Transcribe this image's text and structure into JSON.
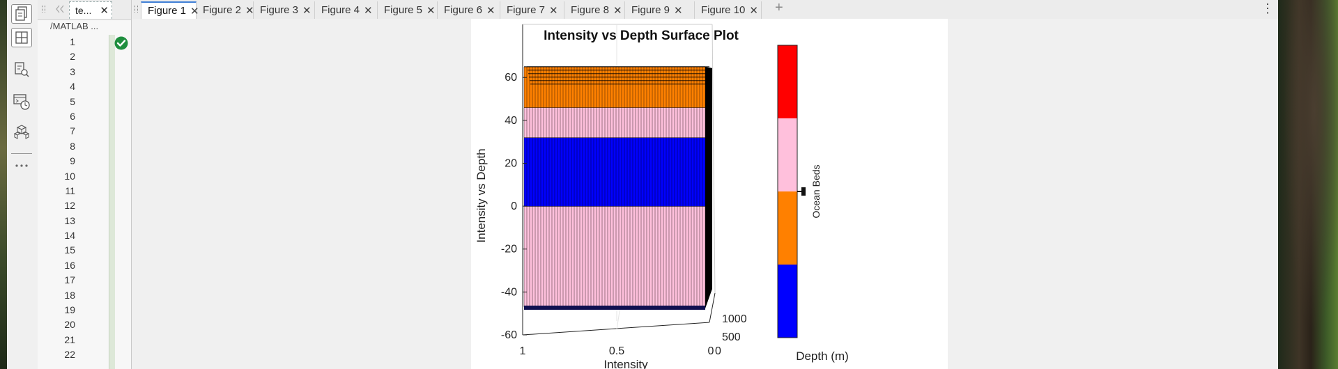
{
  "file_panel": {
    "tab_label": "te...",
    "path": "/MATLAB ...",
    "line_numbers": [
      "1",
      "2",
      "3",
      "4",
      "5",
      "6",
      "7",
      "8",
      "9",
      "10",
      "11",
      "12",
      "13",
      "14",
      "15",
      "16",
      "17",
      "18",
      "19",
      "20",
      "21",
      "22"
    ]
  },
  "figure_tabs": [
    "Figure 1",
    "Figure 2",
    "Figure 3",
    "Figure 4",
    "Figure 5",
    "Figure 6",
    "Figure 7",
    "Figure 8",
    "Figure 9",
    "Figure 10"
  ],
  "add_tab_symbol": "+",
  "more_symbol": "⋮",
  "toolstrip_icons": [
    "files-icon",
    "layout-grid-icon",
    "find-files-icon",
    "command-history-icon",
    "add-ons-icon",
    "more-icon"
  ],
  "colors": {
    "accent": "#3f7fd6",
    "ok_green": "#1e8e3e",
    "band_blue": "#0000ff",
    "band_orange": "#ff8000",
    "band_pink": "#ffc0dc",
    "band_red": "#ff0000"
  },
  "chart_data": {
    "type": "surface",
    "title": "Intensity vs Depth Surface Plot",
    "xlabel": "Intensity",
    "ylabel": "",
    "zlabel": "Intensity vs Depth",
    "x_ticks": [
      "1",
      "0.5",
      "0"
    ],
    "y_ticks": [
      "0",
      "500",
      "1000"
    ],
    "z_ticks": [
      "60",
      "40",
      "20",
      "0",
      "-20",
      "-40",
      "-60"
    ],
    "zlim": [
      -60,
      75
    ],
    "surface_bands": [
      {
        "from": -47,
        "to": 0,
        "color": "#ffc0dc"
      },
      {
        "from": 0,
        "to": 32,
        "color": "#0000ff"
      },
      {
        "from": 32,
        "to": 46,
        "color": "#ffc0dc"
      },
      {
        "from": 46,
        "to": 65,
        "color": "#ff8000"
      }
    ],
    "colorbar": {
      "label": "Ocean Beds",
      "segments": [
        "#ff0000",
        "#ffc0dc",
        "#ff8000",
        "#0000ff"
      ],
      "footer": "Depth (m)"
    }
  }
}
